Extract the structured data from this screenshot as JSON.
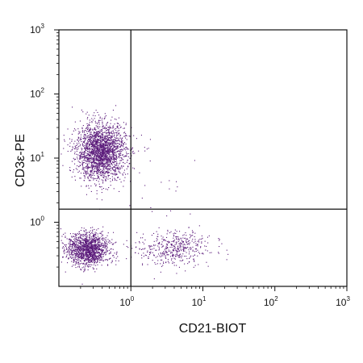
{
  "chart_data": {
    "type": "scatter",
    "x_scale": "log",
    "y_scale": "log",
    "xlim": [
      0.1,
      1000
    ],
    "ylim": [
      0.1,
      1000
    ],
    "xlabel": "CD21-BIOT",
    "ylabel": "CD3ε-PE",
    "x_ticks": [
      {
        "base": "10",
        "exp": "0"
      },
      {
        "base": "10",
        "exp": "1"
      },
      {
        "base": "10",
        "exp": "2"
      },
      {
        "base": "10",
        "exp": "3"
      }
    ],
    "y_ticks": [
      {
        "base": "10",
        "exp": "0"
      },
      {
        "base": "10",
        "exp": "1"
      },
      {
        "base": "10",
        "exp": "2"
      },
      {
        "base": "10",
        "exp": "3"
      }
    ],
    "quadrant_gate": {
      "x": 1.0,
      "y": 1.6
    },
    "point_color": "#5a1a7a",
    "grid": false,
    "populations": [
      {
        "name_shown": false,
        "x_log_center": -0.42,
        "y_log_center": 1.1,
        "x_log_sd": 0.17,
        "y_log_sd": 0.22,
        "count": 2200
      },
      {
        "name_shown": false,
        "x_log_center": -0.6,
        "y_log_center": -0.42,
        "x_log_sd": 0.14,
        "y_log_sd": 0.13,
        "count": 1400
      },
      {
        "name_shown": false,
        "x_log_center": 0.6,
        "y_log_center": -0.4,
        "x_log_sd": 0.25,
        "y_log_sd": 0.14,
        "count": 450
      },
      {
        "name_shown": false,
        "x_log_center": 0.3,
        "y_log_center": 0.8,
        "x_log_sd": 0.3,
        "y_log_sd": 0.5,
        "count": 25
      }
    ]
  }
}
